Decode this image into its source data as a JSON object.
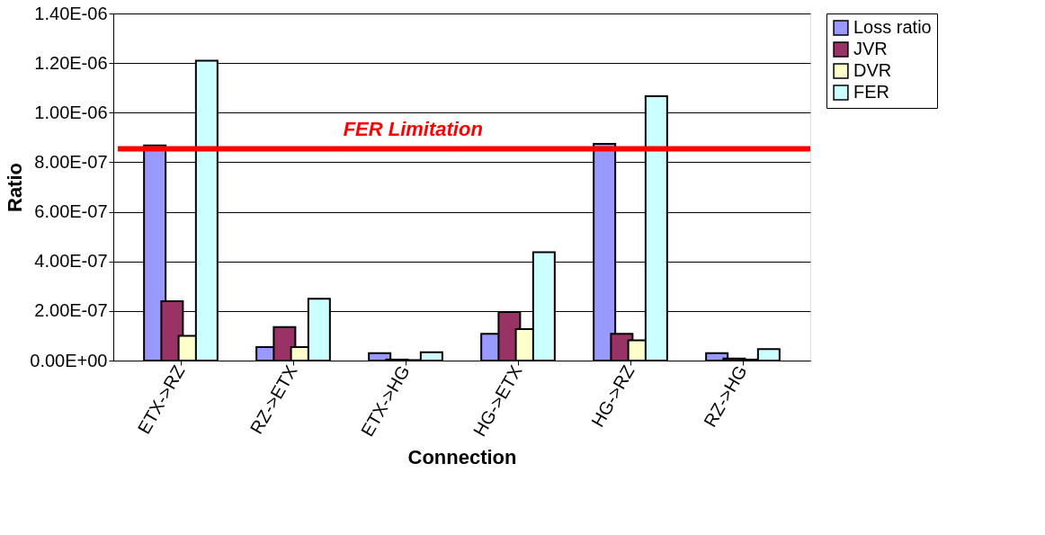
{
  "chart_data": {
    "type": "bar",
    "xlabel": "Connection",
    "ylabel": "Ratio",
    "categories": [
      "ETX->RZ",
      "RZ->ETX",
      "ETX->HG",
      "HG->ETX",
      "HG->RZ",
      "RZ->HG"
    ],
    "series": [
      {
        "name": "Loss ratio",
        "color": "#9999ff",
        "values": [
          8.68e-07,
          5.4e-08,
          3e-08,
          1.08e-07,
          8.74e-07,
          3e-08
        ]
      },
      {
        "name": "JVR",
        "color": "#993366",
        "values": [
          2.39e-07,
          1.35e-07,
          4e-09,
          1.96e-07,
          1.08e-07,
          8e-09
        ]
      },
      {
        "name": "DVR",
        "color": "#ffffcc",
        "values": [
          1e-07,
          5.4e-08,
          2e-09,
          1.27e-07,
          8.2e-08,
          4e-09
        ]
      },
      {
        "name": "FER",
        "color": "#ccffff",
        "values": [
          1.21e-06,
          2.49e-07,
          3.4e-08,
          4.37e-07,
          1.066e-06,
          4.6e-08
        ]
      }
    ],
    "ylim": [
      0,
      1.4e-06
    ],
    "yticks": [
      {
        "value": 0,
        "label": "0.00E+00"
      },
      {
        "value": 2e-07,
        "label": "2.00E-07"
      },
      {
        "value": 4e-07,
        "label": "4.00E-07"
      },
      {
        "value": 6e-07,
        "label": "6.00E-07"
      },
      {
        "value": 8e-07,
        "label": "8.00E-07"
      },
      {
        "value": 1e-06,
        "label": "1.00E-06"
      },
      {
        "value": 1.2e-06,
        "label": "1.20E-06"
      },
      {
        "value": 1.4e-06,
        "label": "1.40E-06"
      }
    ],
    "ref_lines": [
      {
        "axis": "y",
        "value": 8.54e-07,
        "label": "FER Limitation",
        "color": "#ff0000"
      }
    ],
    "grid": "y",
    "legend": "right"
  }
}
